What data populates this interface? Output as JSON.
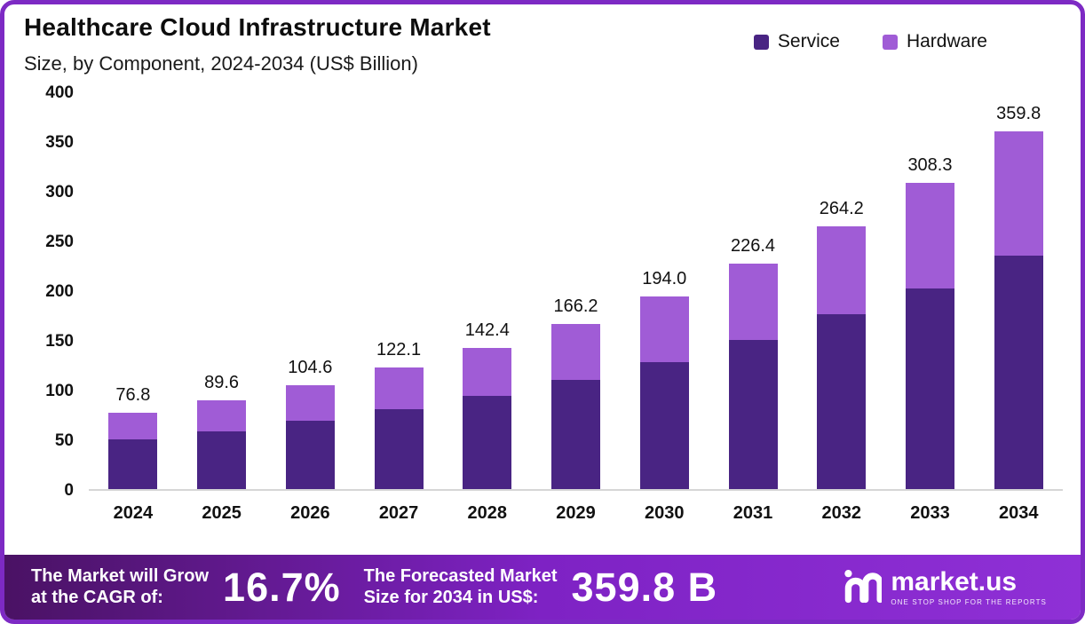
{
  "chart_data": {
    "type": "bar",
    "stacked": true,
    "title": "Healthcare Cloud Infrastructure Market",
    "subtitle": "Size, by Component, 2024-2034 (US$ Billion)",
    "categories": [
      "2024",
      "2025",
      "2026",
      "2027",
      "2028",
      "2029",
      "2030",
      "2031",
      "2032",
      "2033",
      "2034"
    ],
    "series": [
      {
        "name": "Service",
        "color": "#492483",
        "values": [
          50.0,
          58.0,
          69.0,
          80.0,
          94.0,
          110.0,
          128.0,
          150.0,
          176.0,
          202.0,
          235.0
        ]
      },
      {
        "name": "Hardware",
        "color": "#a05cd6",
        "values": [
          26.8,
          31.6,
          35.6,
          42.1,
          48.4,
          56.2,
          66.0,
          76.4,
          88.2,
          106.3,
          124.8
        ]
      }
    ],
    "totals": [
      76.8,
      89.6,
      104.6,
      122.1,
      142.4,
      166.2,
      194.0,
      226.4,
      264.2,
      308.3,
      359.8
    ],
    "total_labels": [
      "76.8",
      "89.6",
      "104.6",
      "122.1",
      "142.4",
      "166.2",
      "194.0",
      "226.4",
      "264.2",
      "308.3",
      "359.8"
    ],
    "xlabel": "",
    "ylabel": "",
    "ylim": [
      0,
      400
    ],
    "yticks": [
      0,
      50,
      100,
      150,
      200,
      250,
      300,
      350,
      400
    ],
    "grid": false,
    "legend_position": "top-right"
  },
  "footer": {
    "cagr_label_lines": [
      "The Market will Grow",
      "at the CAGR of:"
    ],
    "cagr_value": "16.7%",
    "forecast_label_lines": [
      "The Forecasted Market",
      "Size for 2034 in US$:"
    ],
    "forecast_value": "359.8 B",
    "brand_name": "market.us",
    "brand_tagline": "ONE STOP SHOP FOR THE REPORTS"
  },
  "colors": {
    "service": "#492483",
    "hardware": "#a05cd6",
    "frame_border": "#7d2ac4",
    "footer_gradient_start": "#4a1264",
    "footer_gradient_end": "#8f30d6",
    "text": "#111111"
  }
}
